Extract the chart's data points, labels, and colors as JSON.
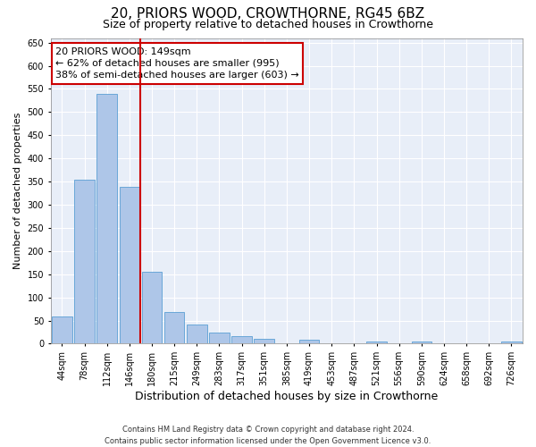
{
  "title1": "20, PRIORS WOOD, CROWTHORNE, RG45 6BZ",
  "title2": "Size of property relative to detached houses in Crowthorne",
  "xlabel": "Distribution of detached houses by size in Crowthorne",
  "ylabel": "Number of detached properties",
  "categories": [
    "44sqm",
    "78sqm",
    "112sqm",
    "146sqm",
    "180sqm",
    "215sqm",
    "249sqm",
    "283sqm",
    "317sqm",
    "351sqm",
    "385sqm",
    "419sqm",
    "453sqm",
    "487sqm",
    "521sqm",
    "556sqm",
    "590sqm",
    "624sqm",
    "658sqm",
    "692sqm",
    "726sqm"
  ],
  "values": [
    58,
    355,
    540,
    338,
    155,
    68,
    42,
    24,
    17,
    10,
    0,
    9,
    0,
    0,
    4,
    0,
    4,
    0,
    0,
    0,
    4
  ],
  "bar_color": "#aec6e8",
  "bar_edge_color": "#5a9fd4",
  "vline_x": 3.5,
  "vline_color": "#cc0000",
  "annotation_line1": "20 PRIORS WOOD: 149sqm",
  "annotation_line2": "← 62% of detached houses are smaller (995)",
  "annotation_line3": "38% of semi-detached houses are larger (603) →",
  "annotation_box_color": "#ffffff",
  "annotation_box_edge_color": "#cc0000",
  "ylim": [
    0,
    660
  ],
  "yticks": [
    0,
    50,
    100,
    150,
    200,
    250,
    300,
    350,
    400,
    450,
    500,
    550,
    600,
    650
  ],
  "footer1": "Contains HM Land Registry data © Crown copyright and database right 2024.",
  "footer2": "Contains public sector information licensed under the Open Government Licence v3.0.",
  "background_color": "#e8eef8",
  "grid_color": "#ffffff",
  "title1_fontsize": 11,
  "title2_fontsize": 9,
  "tick_fontsize": 7,
  "ylabel_fontsize": 8,
  "xlabel_fontsize": 9,
  "footer_fontsize": 6,
  "annotation_fontsize": 8
}
